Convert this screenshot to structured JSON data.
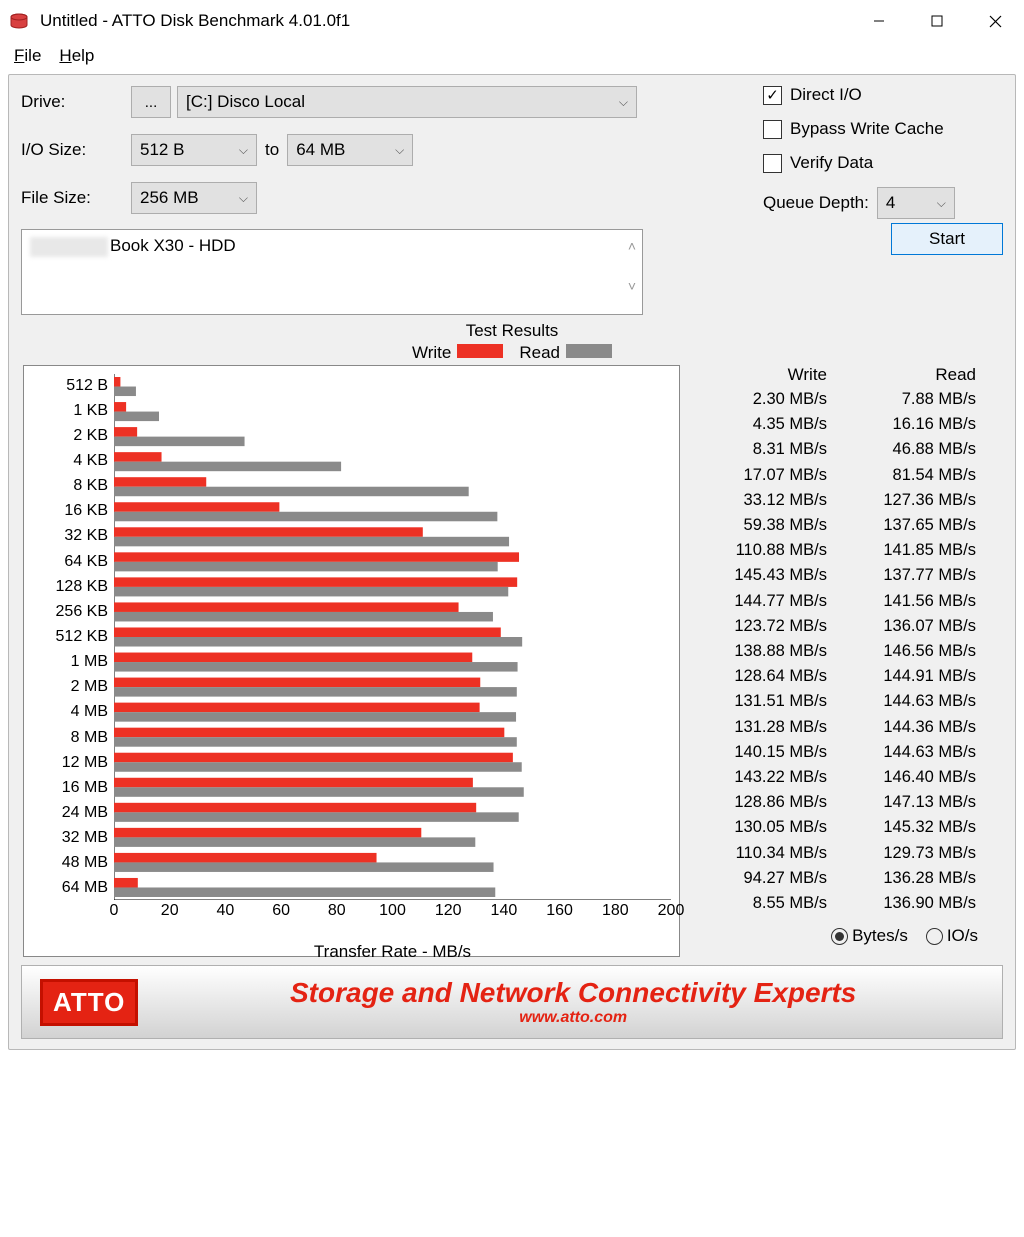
{
  "window": {
    "title": "Untitled - ATTO Disk Benchmark 4.01.0f1",
    "icon_color": "#d03030"
  },
  "menu": {
    "file": "File",
    "help": "Help"
  },
  "config": {
    "drive_label": "Drive:",
    "browse_label": "...",
    "drive_value": "[C:] Disco Local",
    "io_label": "I/O Size:",
    "io_from": "512 B",
    "to_label": "to",
    "io_to": "64 MB",
    "filesize_label": "File Size:",
    "filesize_value": "256 MB",
    "direct_io_label": "Direct I/O",
    "direct_io_checked": true,
    "bypass_label": "Bypass Write Cache",
    "bypass_checked": false,
    "verify_label": "Verify Data",
    "verify_checked": false,
    "queue_label": "Queue Depth:",
    "queue_value": "4",
    "description": "Book X30 - HDD",
    "start_label": "Start"
  },
  "results": {
    "title": "Test Results",
    "legend_write": "Write",
    "legend_read": "Read",
    "write_color": "#ed3124",
    "read_color": "#8a8a8a",
    "x_title": "Transfer Rate - MB/s",
    "x_ticks": [
      0,
      20,
      40,
      60,
      80,
      100,
      120,
      140,
      160,
      180,
      200
    ],
    "x_max": 200,
    "header_write": "Write",
    "header_read": "Read",
    "unit": "MB/s",
    "radio_bytes": "Bytes/s",
    "radio_io": "IO/s",
    "rows": [
      {
        "label": "512 B",
        "write": 2.3,
        "read": 7.88
      },
      {
        "label": "1 KB",
        "write": 4.35,
        "read": 16.16
      },
      {
        "label": "2 KB",
        "write": 8.31,
        "read": 46.88
      },
      {
        "label": "4 KB",
        "write": 17.07,
        "read": 81.54
      },
      {
        "label": "8 KB",
        "write": 33.12,
        "read": 127.36
      },
      {
        "label": "16 KB",
        "write": 59.38,
        "read": 137.65
      },
      {
        "label": "32 KB",
        "write": 110.88,
        "read": 141.85
      },
      {
        "label": "64 KB",
        "write": 145.43,
        "read": 137.77
      },
      {
        "label": "128 KB",
        "write": 144.77,
        "read": 141.56
      },
      {
        "label": "256 KB",
        "write": 123.72,
        "read": 136.07
      },
      {
        "label": "512 KB",
        "write": 138.88,
        "read": 146.56
      },
      {
        "label": "1 MB",
        "write": 128.64,
        "read": 144.91
      },
      {
        "label": "2 MB",
        "write": 131.51,
        "read": 144.63
      },
      {
        "label": "4 MB",
        "write": 131.28,
        "read": 144.36
      },
      {
        "label": "8 MB",
        "write": 140.15,
        "read": 144.63
      },
      {
        "label": "12 MB",
        "write": 143.22,
        "read": 146.4
      },
      {
        "label": "16 MB",
        "write": 128.86,
        "read": 147.13
      },
      {
        "label": "24 MB",
        "write": 130.05,
        "read": 145.32
      },
      {
        "label": "32 MB",
        "write": 110.34,
        "read": 129.73
      },
      {
        "label": "48 MB",
        "write": 94.27,
        "read": 136.28
      },
      {
        "label": "64 MB",
        "write": 8.55,
        "read": 136.9
      }
    ]
  },
  "banner": {
    "logo": "ATTO",
    "tagline": "Storage and Network Connectivity Experts",
    "url": "www.atto.com",
    "brand_color": "#e42313"
  }
}
